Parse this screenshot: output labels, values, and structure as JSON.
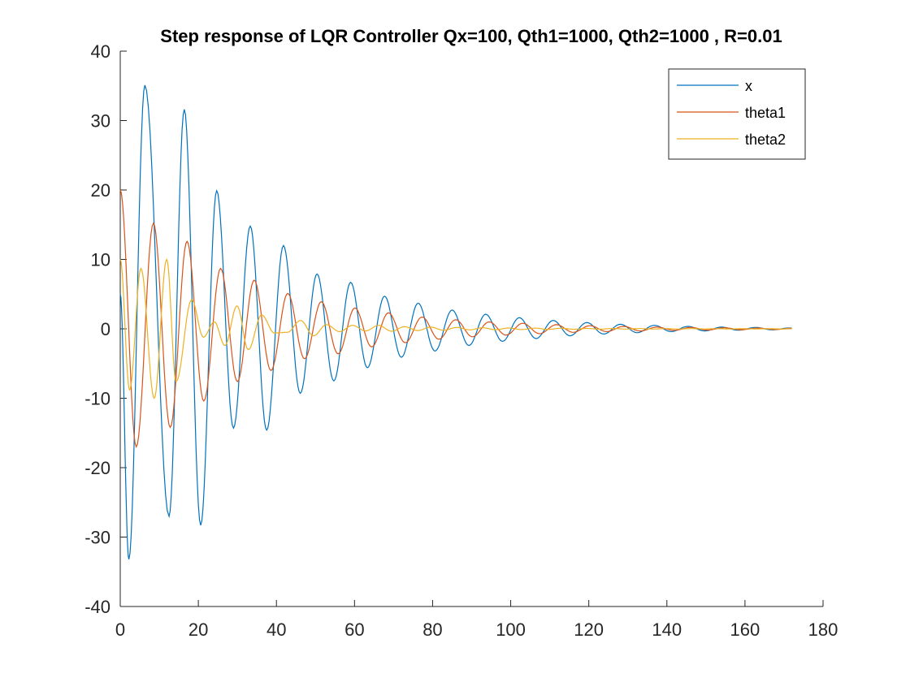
{
  "chart_data": {
    "type": "line",
    "title": "Step response of LQR Controller Qx=100, Qth1=1000, Qth2=1000 , R=0.01",
    "xlabel": "",
    "ylabel": "",
    "xlim": [
      0,
      180
    ],
    "ylim": [
      -40,
      40
    ],
    "xticks": [
      0,
      20,
      40,
      60,
      80,
      100,
      120,
      140,
      160,
      180
    ],
    "yticks": [
      -40,
      -30,
      -20,
      -10,
      0,
      10,
      20,
      30,
      40
    ],
    "grid": false,
    "legend_position": "top-right",
    "series": [
      {
        "name": "x",
        "color": "#0072BD",
        "x": [
          0,
          2.2,
          6.3,
          12.5,
          16.4,
          20.6,
          24.7,
          29.0,
          33.3,
          37.5,
          41.8,
          46.1,
          50.4,
          54.7,
          59.0,
          63.3,
          67.7,
          72.0,
          76.3,
          80.6,
          85.0,
          89.3,
          93.6,
          97.9,
          102.2,
          106.5,
          110.9,
          115.2,
          119.5,
          123.8,
          128.1,
          132.4,
          136.8,
          141.1,
          145.4,
          149.7,
          154.0,
          158.3,
          162.7,
          167.0,
          171.3,
          172
        ],
        "y": [
          5,
          -33.2,
          35.1,
          -27,
          31.6,
          -28.3,
          19.9,
          -14.3,
          14.8,
          -14.6,
          12,
          -9.3,
          7.9,
          -7.5,
          6.7,
          -5.6,
          4.7,
          -4.1,
          3.7,
          -3.2,
          2.7,
          -2.4,
          2.1,
          -1.8,
          1.6,
          -1.4,
          1.2,
          -1.0,
          0.9,
          -0.75,
          0.65,
          -0.55,
          0.5,
          -0.4,
          0.35,
          -0.3,
          0.25,
          -0.2,
          0.2,
          -0.15,
          0.12,
          0.1
        ]
      },
      {
        "name": "theta1",
        "color": "#D95319",
        "x": [
          0,
          4.1,
          8.5,
          12.8,
          17.1,
          21.4,
          25.7,
          30.0,
          34.3,
          38.6,
          42.9,
          47.2,
          51.5,
          55.8,
          60.1,
          64.4,
          68.7,
          73.0,
          77.3,
          81.6,
          85.9,
          90.2,
          94.5,
          98.8,
          103.1,
          107.4,
          111.7,
          116.0,
          120.3,
          124.6,
          128.9,
          133.2,
          137.5,
          141.8,
          146.1,
          150.4,
          154.7,
          159.0,
          163.3,
          167.6,
          172
        ],
        "y": [
          20,
          -17,
          15.2,
          -14.2,
          12.6,
          -10.4,
          8.7,
          -7.6,
          7,
          -6,
          5.1,
          -4.3,
          3.9,
          -3.6,
          3.0,
          -2.6,
          2.3,
          -2.0,
          1.7,
          -1.5,
          1.3,
          -1.15,
          1.0,
          -0.9,
          0.8,
          -0.7,
          0.6,
          -0.5,
          0.45,
          -0.4,
          0.35,
          -0.3,
          0.25,
          -0.22,
          0.2,
          -0.18,
          0.15,
          -0.13,
          0.11,
          -0.1,
          0.08
        ]
      },
      {
        "name": "theta2",
        "color": "#EDB120",
        "x": [
          0,
          2.4,
          5.3,
          8.7,
          11.9,
          14.3,
          18.3,
          21.3,
          24.1,
          26.8,
          29.9,
          32.8,
          36.2,
          39.5,
          42.8,
          46.2,
          49.5,
          52.8,
          56.2,
          59.5,
          62.8,
          66.2,
          69.5,
          72.8,
          76.2,
          79.5,
          82.8,
          86.2,
          89.5,
          92.8,
          96.2,
          99.5,
          102.8,
          106.2,
          109.5,
          112.8,
          116.2,
          119.5,
          122.8,
          126.2,
          129.5,
          132.8,
          136.2,
          139.5,
          142.8,
          146.2,
          149.5,
          152.8,
          156.2,
          159.5,
          162.8,
          166.2,
          169.5,
          172
        ],
        "y": [
          10,
          -8.8,
          8.7,
          -10.0,
          10.0,
          -7.6,
          4.2,
          -1.2,
          1.0,
          -2.4,
          3.3,
          -3.0,
          2.0,
          -0.6,
          -0.5,
          1.2,
          -1.0,
          0.6,
          -0.4,
          0.5,
          -0.3,
          0.5,
          -0.35,
          0.3,
          -0.25,
          0.25,
          -0.2,
          0.2,
          -0.15,
          0.15,
          -0.12,
          0.12,
          -0.1,
          0.1,
          -0.08,
          0.08,
          -0.06,
          0.06,
          -0.05,
          0.05,
          -0.04,
          0.04,
          -0.03,
          0.03,
          -0.03,
          0.03,
          -0.02,
          0.02,
          -0.02,
          0.02,
          -0.01,
          0.01,
          -0.01,
          0.0
        ]
      }
    ]
  }
}
